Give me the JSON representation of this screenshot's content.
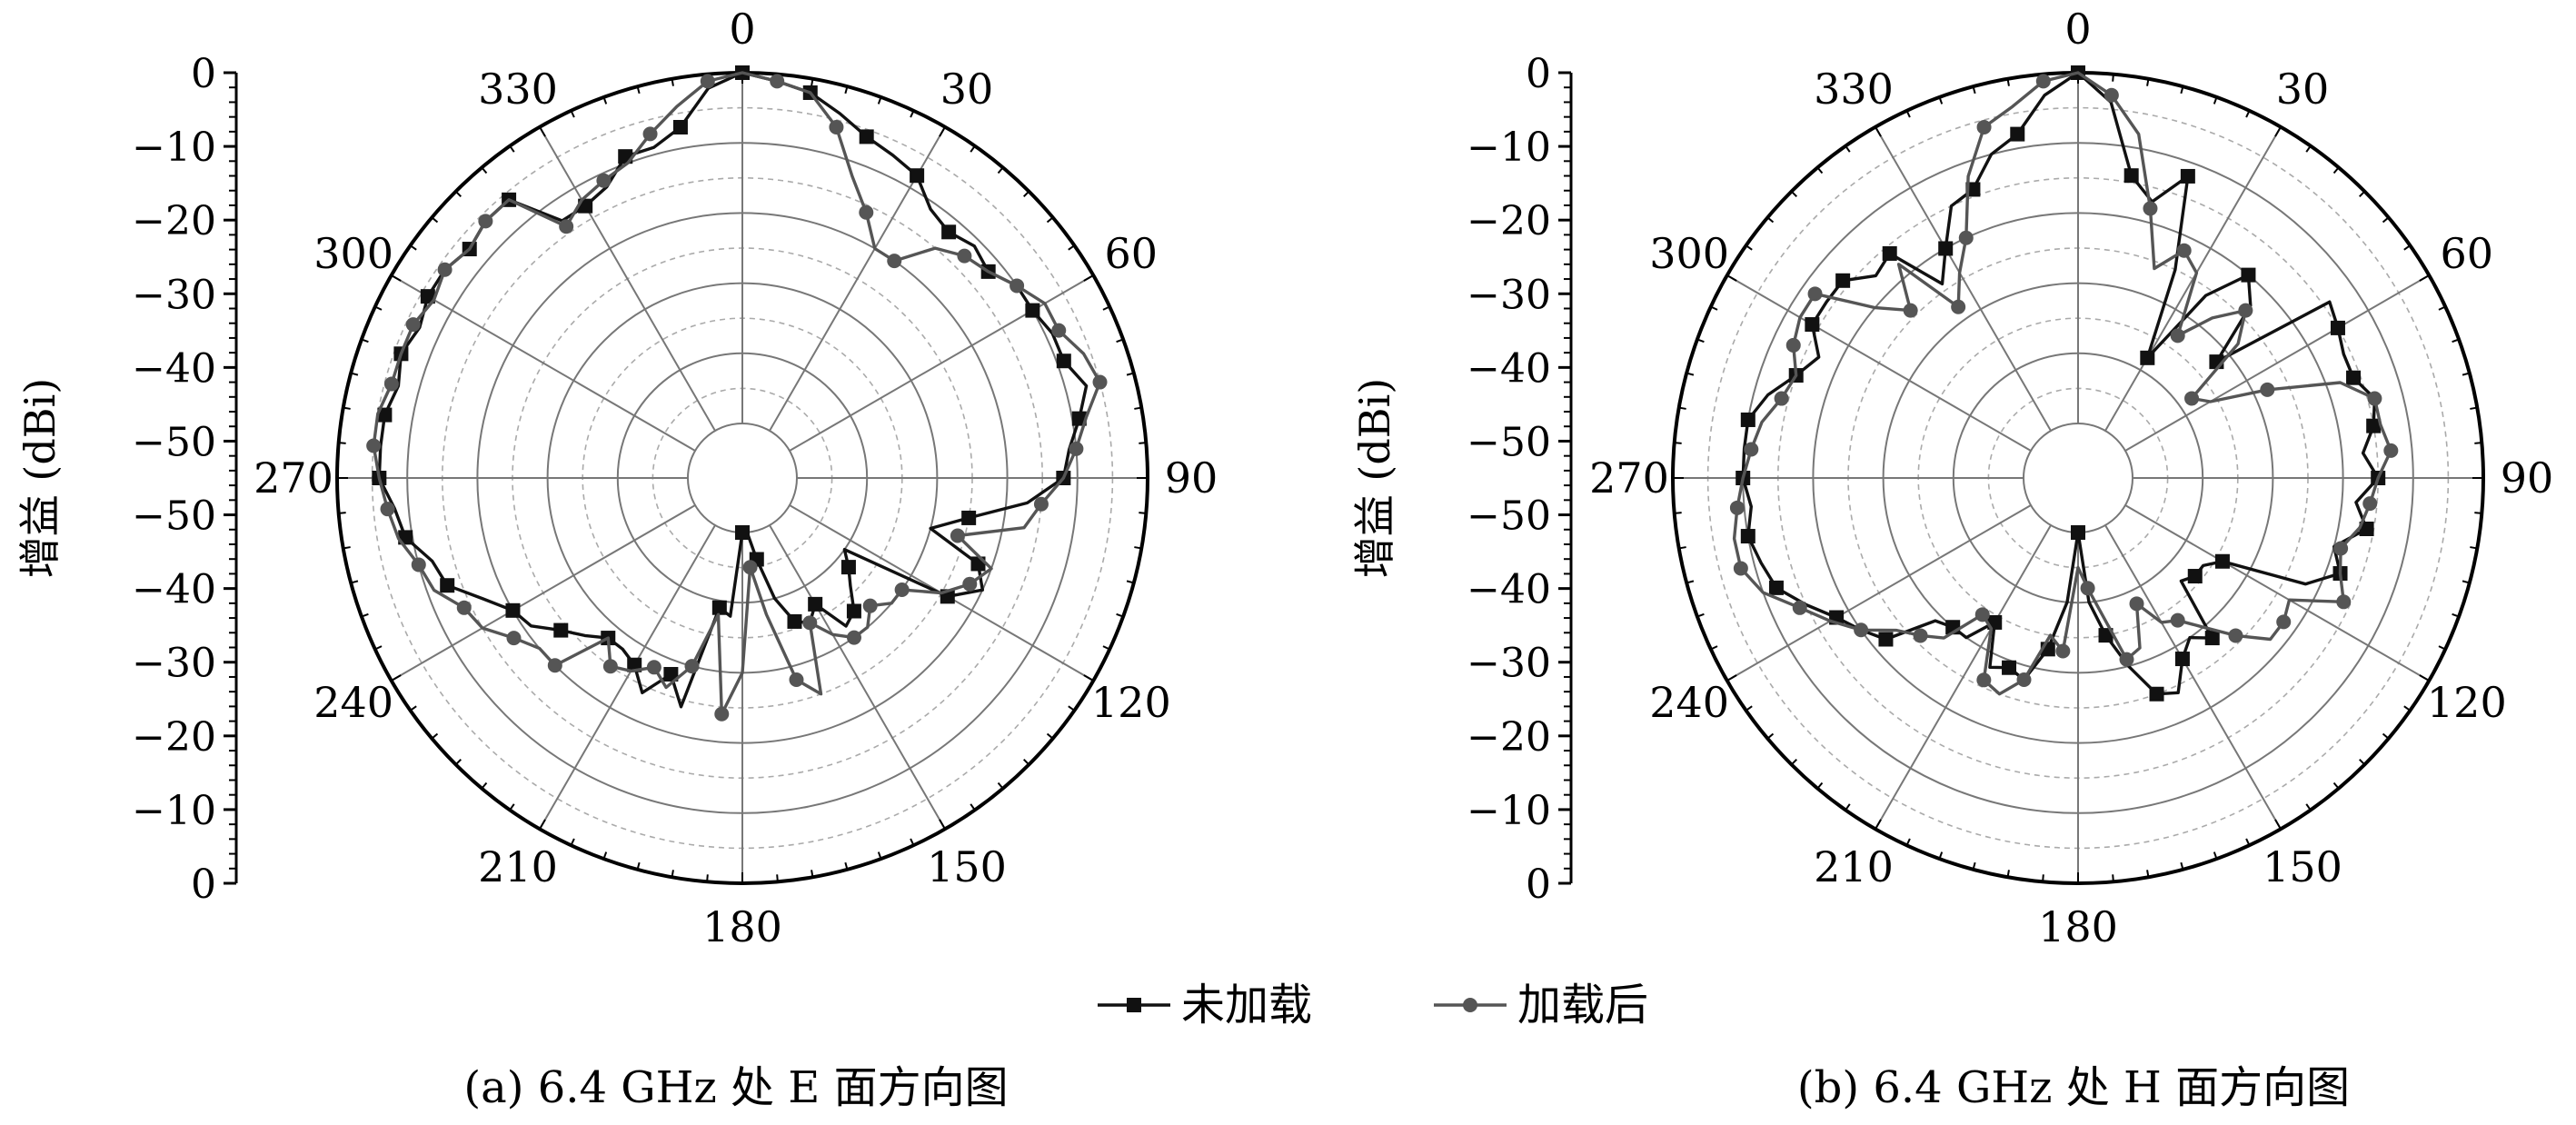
{
  "figure": {
    "legend": [
      {
        "label": "未加载",
        "color": "#111111",
        "marker": "square"
      },
      {
        "label": "加载后",
        "color": "#555555",
        "marker": "circle"
      }
    ]
  },
  "chart_data": [
    {
      "type": "polar-line",
      "caption": "(a) 6.4 GHz 处 E 面方向图",
      "ylabel": "增益 (dBi)",
      "angle_unit": "deg",
      "rlim": [
        -50,
        0
      ],
      "angle_ticks": [
        "0",
        "30",
        "60",
        "90",
        "120",
        "150",
        "180",
        "210",
        "240",
        "270",
        "300",
        "330"
      ],
      "radial_ticks_left": [
        "0",
        "-10",
        "-20",
        "-30",
        "-40",
        "-50",
        "-50",
        "-40",
        "-30",
        "-20",
        "-10",
        "0"
      ],
      "grid": true,
      "series": [
        {
          "name": "未加载",
          "color": "#111111",
          "marker": "square",
          "theta": [
            0,
            5,
            10,
            15,
            20,
            25,
            30,
            35,
            40,
            45,
            50,
            55,
            60,
            65,
            70,
            75,
            80,
            85,
            90,
            95,
            100,
            105,
            110,
            115,
            120,
            125,
            130,
            135,
            140,
            145,
            150,
            155,
            160,
            165,
            170,
            175,
            180,
            185,
            190,
            195,
            200,
            205,
            210,
            215,
            220,
            225,
            230,
            235,
            240,
            245,
            250,
            255,
            260,
            265,
            270,
            275,
            280,
            285,
            290,
            295,
            300,
            305,
            310,
            315,
            320,
            325,
            330,
            335,
            340,
            345,
            350,
            355
          ],
          "r": [
            0,
            -1,
            -2,
            -4,
            -6,
            -7,
            -8,
            -11,
            -12,
            -11,
            -12,
            -10,
            -10,
            -9,
            -9,
            -7,
            -9,
            -11,
            -12,
            -17,
            -25,
            -30,
            -22,
            -20,
            -24,
            -40,
            -38,
            -36,
            -33,
            -32,
            -37,
            -35,
            -36,
            -40,
            -46,
            -50,
            -50,
            -38,
            -39,
            -24,
            -28,
            -24,
            -27,
            -28,
            -28,
            -26,
            -24,
            -21,
            -20,
            -17,
            -13,
            -12,
            -9,
            -8,
            -6,
            -6,
            -6,
            -7,
            -6,
            -7,
            -6,
            -6,
            -7,
            -6,
            -6,
            -13,
            -13,
            -12,
            -9,
            -9,
            -7,
            -2
          ]
        },
        {
          "name": "加载后",
          "color": "#555555",
          "marker": "circle",
          "theta": [
            0,
            5,
            10,
            15,
            20,
            25,
            30,
            35,
            40,
            45,
            50,
            55,
            60,
            65,
            70,
            75,
            80,
            85,
            90,
            95,
            100,
            105,
            110,
            115,
            120,
            125,
            130,
            135,
            140,
            145,
            150,
            155,
            160,
            165,
            170,
            175,
            180,
            185,
            190,
            195,
            200,
            205,
            210,
            215,
            220,
            225,
            230,
            235,
            240,
            245,
            250,
            255,
            260,
            265,
            270,
            275,
            280,
            285,
            290,
            295,
            300,
            305,
            310,
            315,
            320,
            325,
            330,
            335,
            340,
            345,
            350,
            355
          ],
          "r": [
            0,
            -1,
            -2,
            -6,
            -12,
            -16,
            -20,
            -20,
            -15,
            -13,
            -12,
            -10,
            -8,
            -8,
            -6,
            -5,
            -8,
            -10,
            -12,
            -15,
            -17,
            -26,
            -20,
            -22,
            -25,
            -30,
            -30,
            -32,
            -30,
            -30,
            -32,
            -35,
            -25,
            -28,
            -38,
            -45,
            -30,
            -24,
            -38,
            -30,
            -26,
            -28,
            -26,
            -25,
            -28,
            -20,
            -20,
            -18,
            -15,
            -14,
            -11,
            -10,
            -8,
            -7,
            -6,
            -5,
            -5,
            -6,
            -6,
            -6,
            -7,
            -6,
            -7,
            -6,
            -6,
            -14,
            -12,
            -11,
            -10,
            -7,
            -4,
            -1
          ]
        }
      ]
    },
    {
      "type": "polar-line",
      "caption": "(b) 6.4 GHz 处 H 面方向图",
      "ylabel": "增益 (dBi)",
      "angle_unit": "deg",
      "rlim": [
        -50,
        0
      ],
      "angle_ticks": [
        "0",
        "30",
        "60",
        "90",
        "120",
        "150",
        "180",
        "210",
        "240",
        "270",
        "300",
        "330"
      ],
      "radial_ticks_left": [
        "0",
        "-10",
        "-20",
        "-30",
        "-40",
        "-50",
        "-50",
        "-40",
        "-30",
        "-20",
        "-10",
        "0"
      ],
      "grid": true,
      "series": [
        {
          "name": "未加载",
          "color": "#111111",
          "marker": "square",
          "theta": [
            0,
            5,
            10,
            15,
            20,
            25,
            30,
            35,
            40,
            45,
            50,
            55,
            60,
            65,
            70,
            75,
            80,
            85,
            90,
            95,
            100,
            105,
            110,
            115,
            120,
            125,
            130,
            135,
            140,
            145,
            150,
            155,
            160,
            165,
            170,
            175,
            180,
            185,
            190,
            195,
            200,
            205,
            210,
            215,
            220,
            225,
            230,
            235,
            240,
            245,
            250,
            255,
            260,
            265,
            270,
            275,
            280,
            285,
            290,
            295,
            300,
            305,
            310,
            315,
            320,
            325,
            330,
            335,
            340,
            345,
            350,
            355
          ],
          "r": [
            0,
            -4,
            -14,
            -17,
            -12,
            -25,
            -38,
            -26,
            -20,
            -23,
            -32,
            -14,
            -15,
            -16,
            -16,
            -14,
            -15,
            -17,
            -15,
            -18,
            -16,
            -20,
            -18,
            -22,
            -34,
            -36,
            -36,
            -37,
            -28,
            -30,
            -28,
            -24,
            -25,
            -30,
            -35,
            -40,
            -50,
            -40,
            -33,
            -28,
            -29,
            -28,
            -34,
            -30,
            -30,
            -29,
            -22,
            -20,
            -18,
            -15,
            -12,
            -11,
            -10,
            -11,
            -10,
            -10,
            -10,
            -12,
            -15,
            -17,
            -14,
            -14,
            -14,
            -17,
            -16,
            -24,
            -20,
            -15,
            -14,
            -10,
            -8,
            -3
          ]
        },
        {
          "name": "加载后",
          "color": "#555555",
          "marker": "circle",
          "theta": [
            0,
            5,
            10,
            15,
            20,
            25,
            30,
            35,
            40,
            45,
            50,
            55,
            60,
            65,
            70,
            75,
            80,
            85,
            90,
            95,
            100,
            105,
            110,
            115,
            120,
            125,
            130,
            135,
            140,
            145,
            150,
            155,
            160,
            165,
            170,
            175,
            180,
            185,
            190,
            195,
            200,
            205,
            210,
            215,
            220,
            225,
            230,
            235,
            240,
            245,
            250,
            255,
            260,
            265,
            270,
            275,
            280,
            285,
            290,
            295,
            300,
            305,
            310,
            315,
            320,
            325,
            330,
            335,
            340,
            345,
            350,
            355
          ],
          "r": [
            0,
            -3,
            -8,
            -18,
            -26,
            -22,
            -24,
            -33,
            -28,
            -24,
            -28,
            -38,
            -36,
            -28,
            -18,
            -14,
            -14,
            -13,
            -15,
            -16,
            -17,
            -19,
            -18,
            -16,
            -23,
            -22,
            -22,
            -26,
            -30,
            -33,
            -34,
            -38,
            -32,
            -31,
            -38,
            -42,
            -45,
            -33,
            -35,
            -28,
            -25,
            -26,
            -33,
            -34,
            -28,
            -26,
            -24,
            -20,
            -17,
            -14,
            -10,
            -8,
            -8,
            -9,
            -10,
            -11,
            -12,
            -14,
            -15,
            -13,
            -12,
            -12,
            -20,
            -24,
            -18,
            -28,
            -24,
            -20,
            -12,
            -6,
            -4,
            -1
          ]
        }
      ]
    }
  ]
}
